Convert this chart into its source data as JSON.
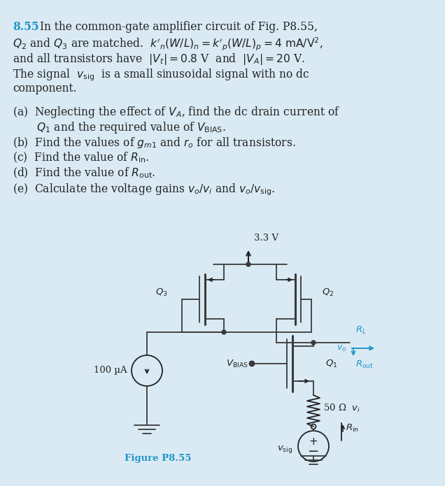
{
  "bg_color": "#daeaf4",
  "title_color": "#2196c8",
  "fig_label_color": "#2196c8",
  "fig_label": "Figure P8.55",
  "line_color": "#3a3a3a",
  "text_lines": [
    [
      "8.55",
      " In the common-gate amplifier circuit of Fig. P8.55,"
    ],
    [
      "",
      "$Q_2$ and $Q_3$ are matched.  $k'_n(W/L)_n = k'_p(W/L)_p = 4$ mA/V$^2$,"
    ],
    [
      "",
      "and all transistors have  $|V_t| = 0.8$ V  and  $|V_A| = 20$ V."
    ],
    [
      "",
      "The signal  $v_{\\rm sig}$  is a small sinusoidal signal with no dc"
    ],
    [
      "",
      "component."
    ]
  ],
  "part_lines": [
    [
      "(a)",
      " Neglecting the effect of $V_A$, find the dc drain current of"
    ],
    [
      "",
      "     $Q_1$ and the required value of $V_{\\rm BIAS}$."
    ],
    [
      "(b)",
      " Find the values of $g_{m1}$ and $r_o$ for all transistors."
    ],
    [
      "(c)",
      " Find the value of $R_{\\rm in}$."
    ],
    [
      "(d)",
      " Find the value of $R_{\\rm out}$."
    ],
    [
      "(e)",
      " Calculate the voltage gains $v_o/v_i$ and $v_o/v_{\\rm sig}$."
    ]
  ],
  "cyan": "#2196c8",
  "black": "#222222"
}
